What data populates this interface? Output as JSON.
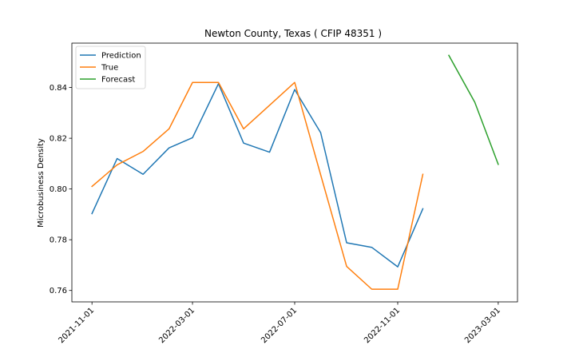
{
  "chart_data": {
    "type": "line",
    "title": "Newton County, Texas ( CFIP 48351 )",
    "xlabel": "",
    "ylabel": "Microbusiness Density",
    "x_ticks": [
      "2021-11-01",
      "2022-03-01",
      "2022-07-01",
      "2022-11-01",
      "2023-03-01"
    ],
    "y_ticks": [
      "0.76",
      "0.78",
      "0.80",
      "0.82",
      "0.84"
    ],
    "xlim": [
      "2021-10-08",
      "2023-03-24"
    ],
    "ylim": [
      0.7555,
      0.8575
    ],
    "legend_position": "upper-left",
    "grid": false,
    "series": [
      {
        "name": "Prediction",
        "color": "#1f77b4",
        "points": [
          {
            "x": "2021-11-01",
            "y": 0.7903
          },
          {
            "x": "2021-12-01",
            "y": 0.812
          },
          {
            "x": "2022-01-01",
            "y": 0.8058
          },
          {
            "x": "2022-02-01",
            "y": 0.8162
          },
          {
            "x": "2022-03-01",
            "y": 0.8202
          },
          {
            "x": "2022-04-01",
            "y": 0.8415
          },
          {
            "x": "2022-05-01",
            "y": 0.8181
          },
          {
            "x": "2022-06-01",
            "y": 0.8145
          },
          {
            "x": "2022-07-01",
            "y": 0.8392
          },
          {
            "x": "2022-08-01",
            "y": 0.8222
          },
          {
            "x": "2022-09-01",
            "y": 0.7788
          },
          {
            "x": "2022-10-01",
            "y": 0.777
          },
          {
            "x": "2022-11-01",
            "y": 0.7693
          },
          {
            "x": "2022-12-01",
            "y": 0.7922
          }
        ]
      },
      {
        "name": "True",
        "color": "#ff7f0e",
        "points": [
          {
            "x": "2021-11-01",
            "y": 0.801
          },
          {
            "x": "2021-12-01",
            "y": 0.8095
          },
          {
            "x": "2022-01-01",
            "y": 0.8148
          },
          {
            "x": "2022-02-01",
            "y": 0.8237
          },
          {
            "x": "2022-03-01",
            "y": 0.842
          },
          {
            "x": "2022-04-01",
            "y": 0.842
          },
          {
            "x": "2022-05-01",
            "y": 0.8237
          },
          {
            "x": "2022-06-01",
            "y": 0.833
          },
          {
            "x": "2022-07-01",
            "y": 0.842
          },
          {
            "x": "2022-08-01",
            "y": 0.8056
          },
          {
            "x": "2022-09-01",
            "y": 0.7695
          },
          {
            "x": "2022-10-01",
            "y": 0.7605
          },
          {
            "x": "2022-11-01",
            "y": 0.7605
          },
          {
            "x": "2022-12-01",
            "y": 0.8058
          }
        ]
      },
      {
        "name": "Forecast",
        "color": "#2ca02c",
        "points": [
          {
            "x": "2023-01-01",
            "y": 0.8527
          },
          {
            "x": "2023-02-01",
            "y": 0.8342
          },
          {
            "x": "2023-03-01",
            "y": 0.8097
          }
        ]
      }
    ]
  }
}
